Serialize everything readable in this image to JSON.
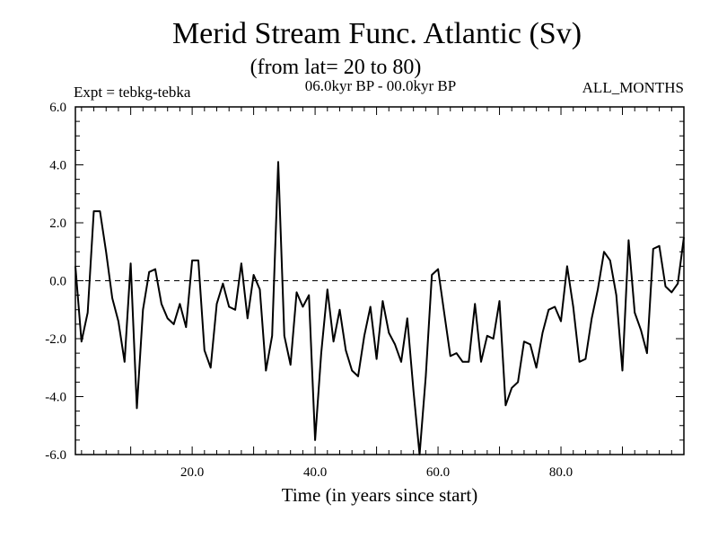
{
  "chart_data": {
    "type": "line",
    "title": "Merid Stream Func. Atlantic (Sv)",
    "subtitle": "(from lat= 20 to 80)",
    "annotations": {
      "left": "Expt = tebkg-tebka",
      "center": "06.0kyr BP - 00.0kyr BP",
      "right": "ALL_MONTHS"
    },
    "xlabel": "Time (in years since start)",
    "ylabel": "",
    "xlim": [
      1,
      100
    ],
    "ylim": [
      -6,
      6
    ],
    "x_ticks": [
      20,
      40,
      60,
      80
    ],
    "x_tick_labels": [
      "20.0",
      "40.0",
      "60.0",
      "80.0"
    ],
    "y_ticks": [
      -6,
      -4,
      -2,
      0,
      2,
      4,
      6
    ],
    "y_tick_labels": [
      "-6.0",
      "-4.0",
      "-2.0",
      "0.0",
      "2.0",
      "4.0",
      "6.0"
    ],
    "reference_line": 0,
    "x": [
      1,
      2,
      3,
      4,
      5,
      6,
      7,
      8,
      9,
      10,
      11,
      12,
      13,
      14,
      15,
      16,
      17,
      18,
      19,
      20,
      21,
      22,
      23,
      24,
      25,
      26,
      27,
      28,
      29,
      30,
      31,
      32,
      33,
      34,
      35,
      36,
      37,
      38,
      39,
      40,
      41,
      42,
      43,
      44,
      45,
      46,
      47,
      48,
      49,
      50,
      51,
      52,
      53,
      54,
      55,
      56,
      57,
      58,
      59,
      60,
      61,
      62,
      63,
      64,
      65,
      66,
      67,
      68,
      69,
      70,
      71,
      72,
      73,
      74,
      75,
      76,
      77,
      78,
      79,
      80,
      81,
      82,
      83,
      84,
      85,
      86,
      87,
      88,
      89,
      90,
      91,
      92,
      93,
      94,
      95,
      96,
      97,
      98,
      99,
      100
    ],
    "series": [
      {
        "name": "tebkg-tebka",
        "values": [
          0.5,
          -2.1,
          -1.1,
          2.4,
          2.4,
          1.0,
          -0.6,
          -1.4,
          -2.8,
          0.6,
          -4.4,
          -1.0,
          0.3,
          0.4,
          -0.8,
          -1.3,
          -1.5,
          -0.8,
          -1.6,
          0.7,
          0.7,
          -2.4,
          -3.0,
          -0.8,
          -0.1,
          -0.9,
          -1.0,
          0.6,
          -1.3,
          0.2,
          -0.3,
          -3.1,
          -1.9,
          4.1,
          -1.9,
          -2.9,
          -0.4,
          -0.9,
          -0.5,
          -5.5,
          -2.5,
          -0.3,
          -2.1,
          -1.0,
          -2.4,
          -3.1,
          -3.3,
          -1.9,
          -0.9,
          -2.7,
          -0.7,
          -1.8,
          -2.2,
          -2.8,
          -1.3,
          -3.8,
          -6.0,
          -3.3,
          0.2,
          0.4,
          -1.1,
          -2.6,
          -2.5,
          -2.8,
          -2.8,
          -0.8,
          -2.8,
          -1.9,
          -2.0,
          -0.7,
          -4.3,
          -3.7,
          -3.5,
          -2.1,
          -2.2,
          -3.0,
          -1.8,
          -1.0,
          -0.9,
          -1.4,
          0.5,
          -0.9,
          -2.8,
          -2.7,
          -1.3,
          -0.3,
          1.0,
          0.7,
          -0.5,
          -3.1,
          1.4,
          -1.1,
          -1.7,
          -2.5,
          1.1,
          1.2,
          -0.2,
          -0.4,
          -0.1,
          1.5
        ]
      }
    ]
  }
}
